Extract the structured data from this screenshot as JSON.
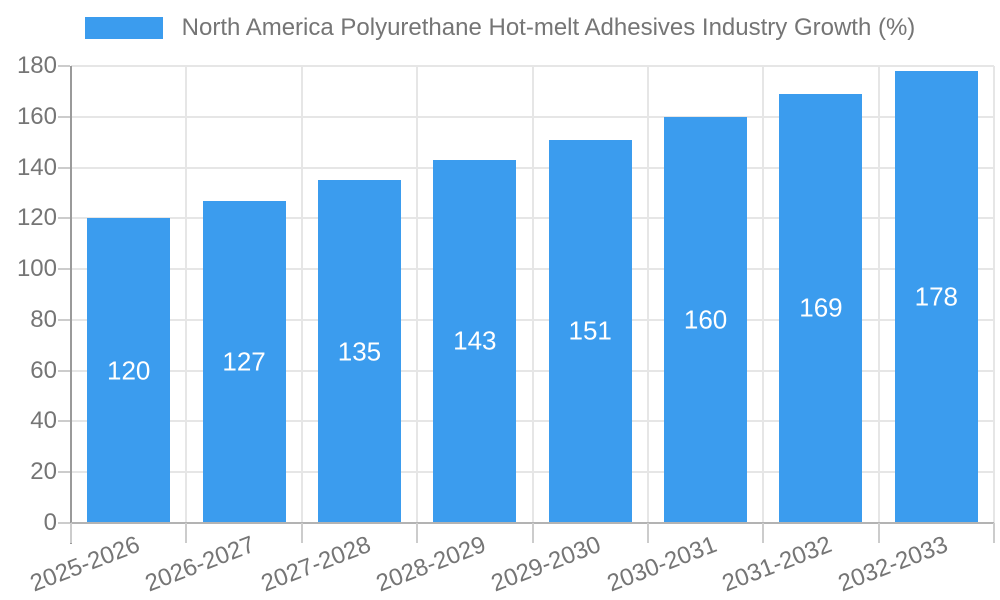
{
  "legend": {
    "label": "North America Polyurethane Hot-melt Adhesives Industry Growth (%)"
  },
  "chart_data": {
    "type": "bar",
    "title": "North America Polyurethane Hot-melt Adhesives Industry Growth (%)",
    "categories": [
      "2025-2026",
      "2026-2027",
      "2027-2028",
      "2028-2029",
      "2029-2030",
      "2030-2031",
      "2031-2032",
      "2032-2033"
    ],
    "values": [
      120,
      127,
      135,
      143,
      151,
      160,
      169,
      178
    ],
    "value_labels": [
      "120",
      "127",
      "135",
      "143",
      "151",
      "160",
      "169",
      "178"
    ],
    "yticks": [
      0,
      20,
      40,
      60,
      80,
      100,
      120,
      140,
      160,
      180
    ],
    "ylim": [
      0,
      180
    ],
    "xlabel": "",
    "ylabel": "",
    "grid": true,
    "legend_position": "top",
    "colors": {
      "bar": "#3b9cee",
      "value_label": "#ffffff",
      "axis_text": "#757575",
      "gridline": "#e6e6e6",
      "axis_line": "#b3b3b3",
      "background": "#ffffff"
    }
  }
}
